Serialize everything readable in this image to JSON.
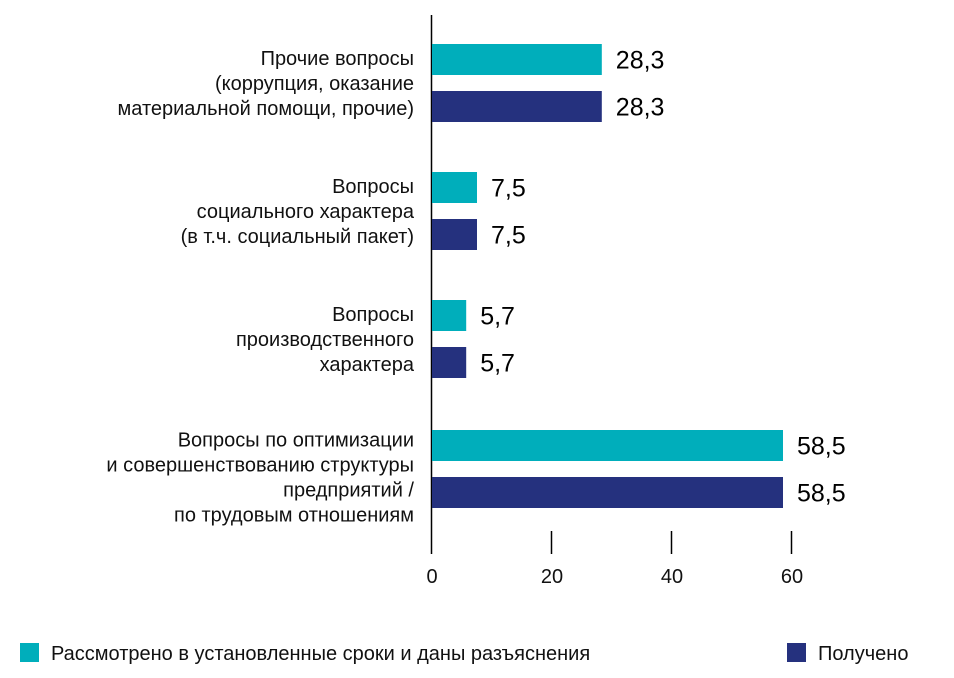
{
  "chart_data": {
    "type": "bar",
    "orientation": "horizontal",
    "categories": [
      [
        "Прочие вопросы",
        "(коррупция, оказание",
        "материальной помощи, прочие)"
      ],
      [
        "Вопросы",
        "социального характера",
        "(в т.ч. социальный пакет)"
      ],
      [
        "Вопросы",
        "производственного",
        "характера"
      ],
      [
        "Вопросы по оптимизации",
        "и совершенствованию структуры",
        "предприятий /",
        "по трудовым отношениям"
      ]
    ],
    "series": [
      {
        "name": "Рассмотрено в установленные сроки и даны разъяснения",
        "color": "#00AEBB",
        "values": [
          28.3,
          7.5,
          5.7,
          58.5
        ],
        "labels": [
          "28,3",
          "7,5",
          "5,7",
          "58,5"
        ]
      },
      {
        "name": "Получено",
        "color": "#25317E",
        "values": [
          28.3,
          7.5,
          5.7,
          58.5
        ],
        "labels": [
          "28,3",
          "7,5",
          "5,7",
          "58,5"
        ]
      }
    ],
    "xticks": [
      "0",
      "20",
      "40",
      "60"
    ],
    "xtick_values": [
      0,
      20,
      40,
      60
    ],
    "xlim": [
      0,
      60
    ],
    "title": "",
    "xlabel": "",
    "ylabel": "",
    "grid": false,
    "legend_position": "bottom"
  }
}
